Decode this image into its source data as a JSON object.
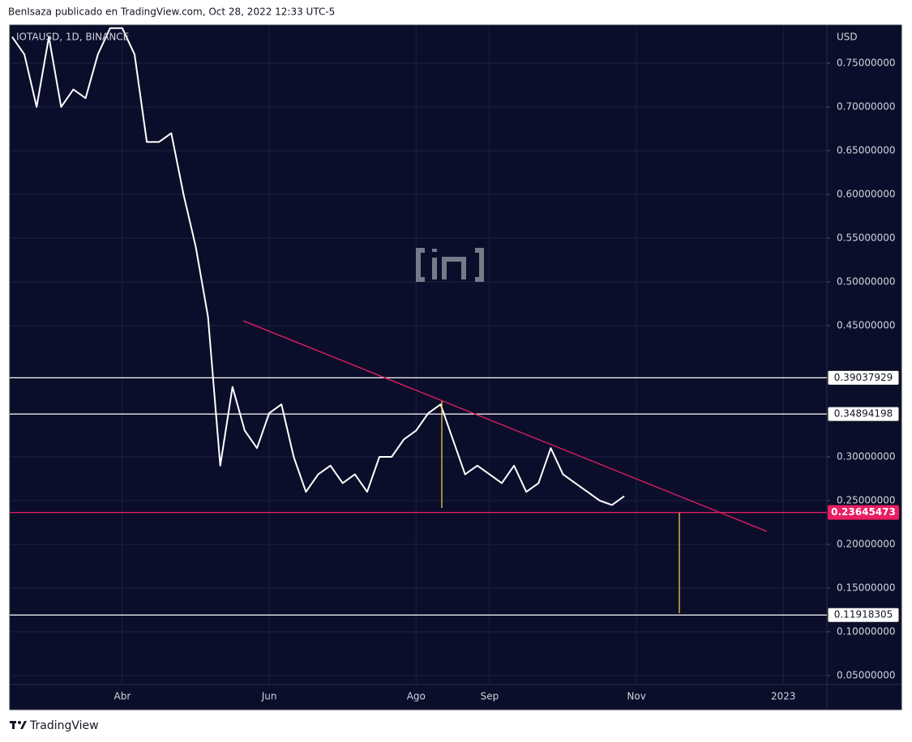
{
  "chart_data": {
    "type": "line",
    "header": "BenIsaza publicado en TradingView.com, Oct 28, 2022 12:33 UTC-5",
    "symbol": "IOTAUSD, 1D, BINANCE",
    "axis_unit": "USD",
    "footer": "TradingView",
    "categories": [
      null,
      null,
      null,
      null,
      null,
      null,
      null,
      null,
      null,
      "Abr",
      null,
      null,
      null,
      null,
      null,
      null,
      null,
      null,
      null,
      null,
      null,
      "Jun",
      null,
      null,
      null,
      null,
      null,
      null,
      null,
      null,
      null,
      null,
      null,
      "Ago",
      null,
      null,
      null,
      null,
      null,
      "Sep",
      null,
      null,
      null,
      null,
      null,
      null,
      null,
      null,
      null,
      null,
      null,
      "Nov",
      null,
      null,
      null,
      null,
      null,
      null,
      null,
      null,
      null,
      null,
      null,
      "2023",
      null,
      null,
      null
    ],
    "series": [
      {
        "name": "IOTAUSD",
        "color": "#ffffff",
        "values": [
          0.78,
          0.76,
          0.7,
          0.78,
          0.7,
          0.72,
          0.71,
          0.76,
          0.79,
          0.79,
          0.76,
          0.66,
          0.66,
          0.67,
          0.6,
          0.54,
          0.46,
          0.29,
          0.38,
          0.33,
          0.31,
          0.35,
          0.36,
          0.3,
          0.26,
          0.28,
          0.29,
          0.27,
          0.28,
          0.26,
          0.3,
          0.3,
          0.32,
          0.33,
          0.35,
          0.36,
          0.32,
          0.28,
          0.29,
          0.28,
          0.27,
          0.29,
          0.26,
          0.27,
          0.31,
          0.28,
          0.27,
          0.26,
          0.25,
          0.245,
          0.255,
          null,
          null,
          null,
          null,
          null,
          null,
          null,
          null,
          null,
          null,
          null,
          null,
          null,
          null,
          null,
          null
        ]
      }
    ],
    "ylim": [
      0.012,
      0.7926
    ],
    "yticks": [
      {
        "value": 0.05,
        "label": "0.05000000"
      },
      {
        "value": 0.1,
        "label": "0.10000000"
      },
      {
        "value": 0.15,
        "label": "0.15000000"
      },
      {
        "value": 0.2,
        "label": "0.20000000"
      },
      {
        "value": 0.25,
        "label": "0.25000000"
      },
      {
        "value": 0.3,
        "label": "0.30000000"
      },
      {
        "value": 0.45,
        "label": "0.45000000"
      },
      {
        "value": 0.5,
        "label": "0.50000000"
      },
      {
        "value": 0.55,
        "label": "0.55000000"
      },
      {
        "value": 0.6,
        "label": "0.60000000"
      },
      {
        "value": 0.65,
        "label": "0.65000000"
      },
      {
        "value": 0.7,
        "label": "0.70000000"
      },
      {
        "value": 0.75,
        "label": "0.75000000"
      }
    ],
    "levels": [
      {
        "value": 0.39037929,
        "color": "#ffffff"
      },
      {
        "value": 0.34894198,
        "color": "#ffffff"
      },
      {
        "value": 0.23645473,
        "color": "#e91e63"
      },
      {
        "value": 0.11918305,
        "color": "#ffffff"
      }
    ],
    "grid": true
  }
}
